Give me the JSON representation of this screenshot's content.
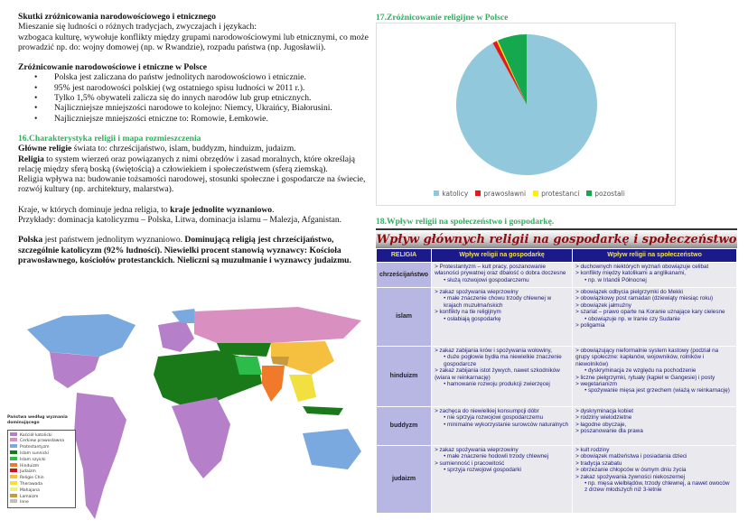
{
  "left": {
    "s1_title": "Skutki zróżnicowania narodowościowego i etnicznego",
    "s1_lines": [
      "Mieszanie się ludności o różnych tradycjach, zwyczajach i językach:",
      "wzbogaca kulturę, wywołuje konflikty między grupami narodowościowymi lub etnicznymi, co może prowadzić np. do:  wojny domowej (np. w Rwandzie),  rozpadu państwa (np. Jugosławii)."
    ],
    "s2_title": "Zróżnicowanie narodowościowe i etniczne w Polsce",
    "s2_bullets": [
      "Polska jest zaliczana do państw jednolitych narodowościowo i etnicznie.",
      "95%  jest narodowości polskiej (wg ostatniego spisu ludności w 2011 r.).",
      "Tylko 1,5% obywateli zalicza się do innych narodów lub grup etnicznych.",
      "Najliczniejsze mniejszości narodowe to kolejno:  Niemcy, Ukraińcy,  Białorusini.",
      "Najliczniejsze mniejszości etniczne to:   Romowie,  Łemkowie."
    ],
    "s3_title": "16.Charakterystyka religii i mapa rozmieszczenia",
    "s3_p1_bold": "Główne religie",
    "s3_p1": " świata to:  chrześcijaństwo, islam, buddyzm, hinduizm, judaizm.",
    "s3_p2_bold": "Religia",
    "s3_p2": " to system wierzeń oraz powiązanych z nimi obrzędów i zasad moralnych, które określają relację między sferą boską (świętością) a człowiekiem i społeczeństwem (sferą ziemską).",
    "s3_p3": "Religia wpływa na: budowanie tożsamości narodowej, stosunki społeczne i gospodarcze na świecie, rozwój kultury (np. architektury, malarstwa).",
    "s3_p4": "Kraje, w których dominuje jedna religia, to ",
    "s3_p4_bold": "kraje jednolite wyznaniowo",
    "s3_p4_end": ".",
    "s3_p5": "Przykłady:  dominacja katolicyzmu – Polska, Litwa, dominacja islamu – Malezja, Afganistan.",
    "s3_p6_bold1": "Polska",
    "s3_p6": " jest państwem jednolitym wyznaniowo. ",
    "s3_p6_bold2": "Dominującą religią jest chrześcijaństwo, szczególnie katolicyzm (92% ludności). Niewielki procent stanowią wyznawcy: Kościoła prawosławnego, kościołów protestanckich. Nieliczni są  muzułmanie i wyznawcy judaizmu."
  },
  "map": {
    "legend_title": "Państwa według wyznania dominującego",
    "legend": [
      {
        "label": "Kościół katolicki",
        "color": "#b57fc9"
      },
      {
        "label": "Cerkiew prawosławna",
        "color": "#d98fc0"
      },
      {
        "label": "Protestantyzm",
        "color": "#7aa9e0"
      },
      {
        "label": "Islam sunnicki",
        "color": "#1a7a1a"
      },
      {
        "label": "Islam szyicki",
        "color": "#2dbb4a"
      },
      {
        "label": "Hinduizm",
        "color": "#f07a2a"
      },
      {
        "label": "Judaizm",
        "color": "#d01020"
      },
      {
        "label": "Religie Chin",
        "color": "#f5c040"
      },
      {
        "label": "Therawada",
        "color": "#f2e040"
      },
      {
        "label": "Mahajana",
        "color": "#f0f080"
      },
      {
        "label": "Lamaizm",
        "color": "#c89a40"
      },
      {
        "label": "Inne",
        "color": "#c0c0c0"
      }
    ]
  },
  "pie": {
    "heading": "17.Zróżnicowanie religijne w Polsce",
    "chart_data": {
      "type": "pie",
      "categories": [
        "katolicy",
        "prawosławni",
        "protestanci",
        "pozostali"
      ],
      "values": [
        92,
        1,
        0.3,
        6.7
      ],
      "colors": [
        "#92c8dc",
        "#e31a1c",
        "#ffef00",
        "#15a84f"
      ],
      "legend_position": "bottom"
    }
  },
  "table": {
    "heading": "18.Wpływ religii na społeczeństwo i gospodarkę.",
    "title": "Wpływ głównych religii na gospodarkę i społeczeństwo",
    "headers": [
      "RELIGIA",
      "Wpływ religii na gospodarkę",
      "Wpływ religii na społeczeństwo"
    ],
    "rows": [
      {
        "religion": "chrześcijaństwo",
        "econ": [
          [
            "> Protestantyzm – kult pracy, poszanowanie własności prywatnej oraz dbałość o dobra doczesne",
            1
          ],
          [
            "• służą rozwojowi gospodarczemu",
            2
          ]
        ],
        "soc": [
          [
            "> duchownych niektórych wyznań obowiązuje celibat",
            1
          ],
          [
            "> konflikty między katolikami a anglikanami,",
            1
          ],
          [
            "• np. w Irlandii Północnej",
            2
          ]
        ]
      },
      {
        "religion": "islam",
        "econ": [
          [
            "> zakaz spożywania wieprzowiny",
            1
          ],
          [
            "• małe znaczenie chowu trzody chlewnej w krajach muzułmańskich",
            2
          ],
          [
            "> konflikty na tle religijnym",
            1
          ],
          [
            "• osłabiają gospodarkę",
            2
          ]
        ],
        "soc": [
          [
            "> obowiązek odbycia pielgrzymki do Mekki",
            1
          ],
          [
            "> obowiązkowy post ramadan (dziewiąty miesiąc roku)",
            1
          ],
          [
            "> obowiązek jałmużny",
            1
          ],
          [
            "> szariat – prawo oparte na Koranie uznające kary cielesne",
            1
          ],
          [
            "• obowiązuje np. w Iranie czy Sudanie",
            2
          ],
          [
            "> poligamia",
            1
          ]
        ]
      },
      {
        "religion": "hinduizm",
        "econ": [
          [
            "> zakaz zabijania krów i spożywania wołowiny,",
            1
          ],
          [
            "• duże pogłowie bydła ma niewielkie znaczenie gospodarcze",
            2
          ],
          [
            "> zakaz zabijania istot żywych, nawet szkodników (wiara w reinkarnację)",
            1
          ],
          [
            "• hamowanie rozwoju produkcji zwierzęcej",
            2
          ]
        ],
        "soc": [
          [
            "> obowiązujący nieformalnie system kastowy (podział na grupy społeczne: kapłanów, wojowników, rolników i niewolników)",
            1
          ],
          [
            "• dyskryminacja ze względu na pochodzenie",
            2
          ],
          [
            "> liczne pielgrzymki, rytuały (kąpiel w Gangesie) i posty",
            1
          ],
          [
            "> wegetarianizm",
            1
          ],
          [
            "• spożywanie mięsa jest grzechem (wiażą w reinkarnację)",
            2
          ]
        ]
      },
      {
        "religion": "buddyzm",
        "econ": [
          [
            "> zachęca do niewielkiej konsumpcji dóbr",
            1
          ],
          [
            "• nie sprzyja rozwojowi gospodarczemu",
            2
          ],
          [
            "• minimalne wykorzystanie surowców naturalnych",
            2
          ]
        ],
        "soc": [
          [
            "> dyskryminacja kobiet",
            1
          ],
          [
            "> rodziny wielodzietne",
            1
          ],
          [
            "> łagodne obyczaje,",
            1
          ],
          [
            "> poszanowanie dla prawa",
            1
          ]
        ]
      },
      {
        "religion": "judaizm",
        "econ": [
          [
            "> zakaz spożywania wieprzowiny",
            1
          ],
          [
            "• małe znaczenie hodowli trzody chlewnej",
            2
          ],
          [
            "> sumienność i pracowitość",
            1
          ],
          [
            "• sprzyja rozwojowi gospodarki",
            2
          ]
        ],
        "soc": [
          [
            "> kult rodziny",
            1
          ],
          [
            "> obowiązek małżeństwa i posiadania dzieci",
            1
          ],
          [
            "> tradycja szabatu",
            1
          ],
          [
            "> obrzezanie chłopców w ósmym dniu życia",
            1
          ],
          [
            "> zakaz spożywania żywności niekoszernej",
            1
          ],
          [
            "• np. mięsa wielbłądów, trzody chlewnej, a nawet owoców z drzew młodszych niż 3-letnie",
            2
          ]
        ]
      }
    ]
  }
}
